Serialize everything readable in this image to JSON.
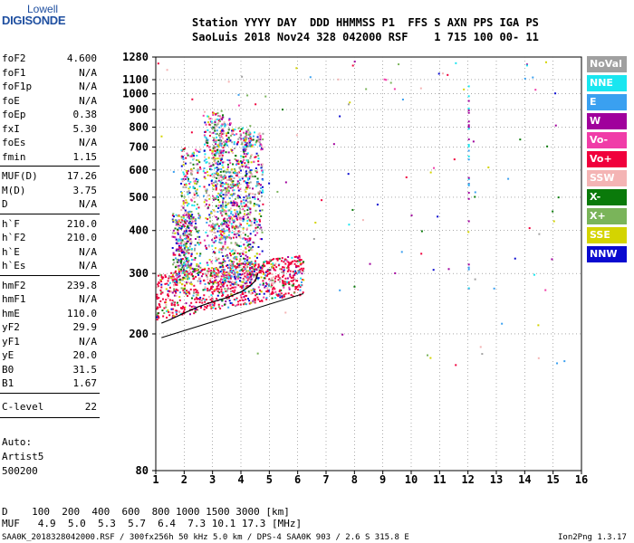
{
  "logo": {
    "line1": "Lowell",
    "line2": "DIGISONDE"
  },
  "header": {
    "line1": "Station YYYY DAY  DDD HHMMSS P1  FFS S AXN PPS IGA PS",
    "line2": "SaoLuis 2018 Nov24 328 042000 RSF    1 715 100 00- 11"
  },
  "params_group1": [
    {
      "name": "foF2",
      "value": "4.600"
    },
    {
      "name": "foF1",
      "value": "N/A"
    },
    {
      "name": "foF1p",
      "value": "N/A"
    },
    {
      "name": "foE",
      "value": "N/A"
    },
    {
      "name": "foEp",
      "value": "0.38"
    },
    {
      "name": "fxI",
      "value": "5.30"
    },
    {
      "name": "foEs",
      "value": "N/A"
    },
    {
      "name": "fmin",
      "value": "1.15"
    }
  ],
  "params_group2": [
    {
      "name": "MUF(D)",
      "value": "17.26"
    },
    {
      "name": "M(D)",
      "value": "3.75"
    },
    {
      "name": "D",
      "value": "N/A"
    }
  ],
  "params_group3": [
    {
      "name": "h`F",
      "value": "210.0"
    },
    {
      "name": "h`F2",
      "value": "210.0"
    },
    {
      "name": "h`E",
      "value": "N/A"
    },
    {
      "name": "h`Es",
      "value": "N/A"
    }
  ],
  "params_group4": [
    {
      "name": "hmF2",
      "value": "239.8"
    },
    {
      "name": "hmF1",
      "value": "N/A"
    },
    {
      "name": "hmE",
      "value": "110.0"
    },
    {
      "name": "yF2",
      "value": "29.9"
    },
    {
      "name": "yF1",
      "value": "N/A"
    },
    {
      "name": "yE",
      "value": "20.0"
    },
    {
      "name": "B0",
      "value": "31.5"
    },
    {
      "name": "B1",
      "value": "1.67"
    }
  ],
  "c_level": {
    "name": "C-level",
    "value": "22"
  },
  "autoscaling": {
    "line1": "Auto:",
    "line2": "Artist5",
    "line3": "500200"
  },
  "legend": [
    {
      "label": "NoVal",
      "color": "#a0a0a0"
    },
    {
      "label": "NNE",
      "color": "#19e6f0"
    },
    {
      "label": "E",
      "color": "#3aa0f0"
    },
    {
      "label": "W",
      "color": "#a0009c"
    },
    {
      "label": "Vo-",
      "color": "#f03ca8"
    },
    {
      "label": "Vo+",
      "color": "#f0003c"
    },
    {
      "label": "SSW",
      "color": "#f4b4b4"
    },
    {
      "label": "X-",
      "color": "#0a7a0a"
    },
    {
      "label": "X+",
      "color": "#7ab45a"
    },
    {
      "label": "SSE",
      "color": "#d4d400"
    },
    {
      "label": "NNW",
      "color": "#0a0ad0"
    }
  ],
  "footer": {
    "d_row": "D    100  200  400  600  800 1000 1500 3000 [km]",
    "muf_row": "MUF   4.9  5.0  5.3  5.7  6.4  7.3 10.1 17.3 [MHz]",
    "info_line": "SAA0K_2018328042000.RSF / 300fx256h 50 kHz 5.0 km / DPS-4 SAA0K 903 / 2.6 S 315.8 E",
    "version": "Ion2Png 1.3.17"
  },
  "chart_data": {
    "type": "scatter",
    "x_ticks": [
      "1",
      "2",
      "3",
      "4",
      "5",
      "6",
      "7",
      "8",
      "9",
      "10",
      "11",
      "12",
      "13",
      "14",
      "15",
      "16"
    ],
    "y_ticks": [
      "80",
      "200",
      "300",
      "400",
      "500",
      "600",
      "700",
      "800",
      "900",
      "1000",
      "1100",
      "1280"
    ],
    "xlim": [
      1,
      16
    ],
    "ylim": [
      80,
      1280
    ],
    "y_scale": "log",
    "grid": true,
    "trace_points": [
      [
        1.2,
        215
      ],
      [
        1.5,
        220
      ],
      [
        2.0,
        230
      ],
      [
        2.5,
        240
      ],
      [
        3.0,
        248
      ],
      [
        3.5,
        255
      ],
      [
        4.0,
        265
      ],
      [
        4.3,
        275
      ],
      [
        4.5,
        285
      ],
      [
        4.6,
        300
      ]
    ]
  }
}
